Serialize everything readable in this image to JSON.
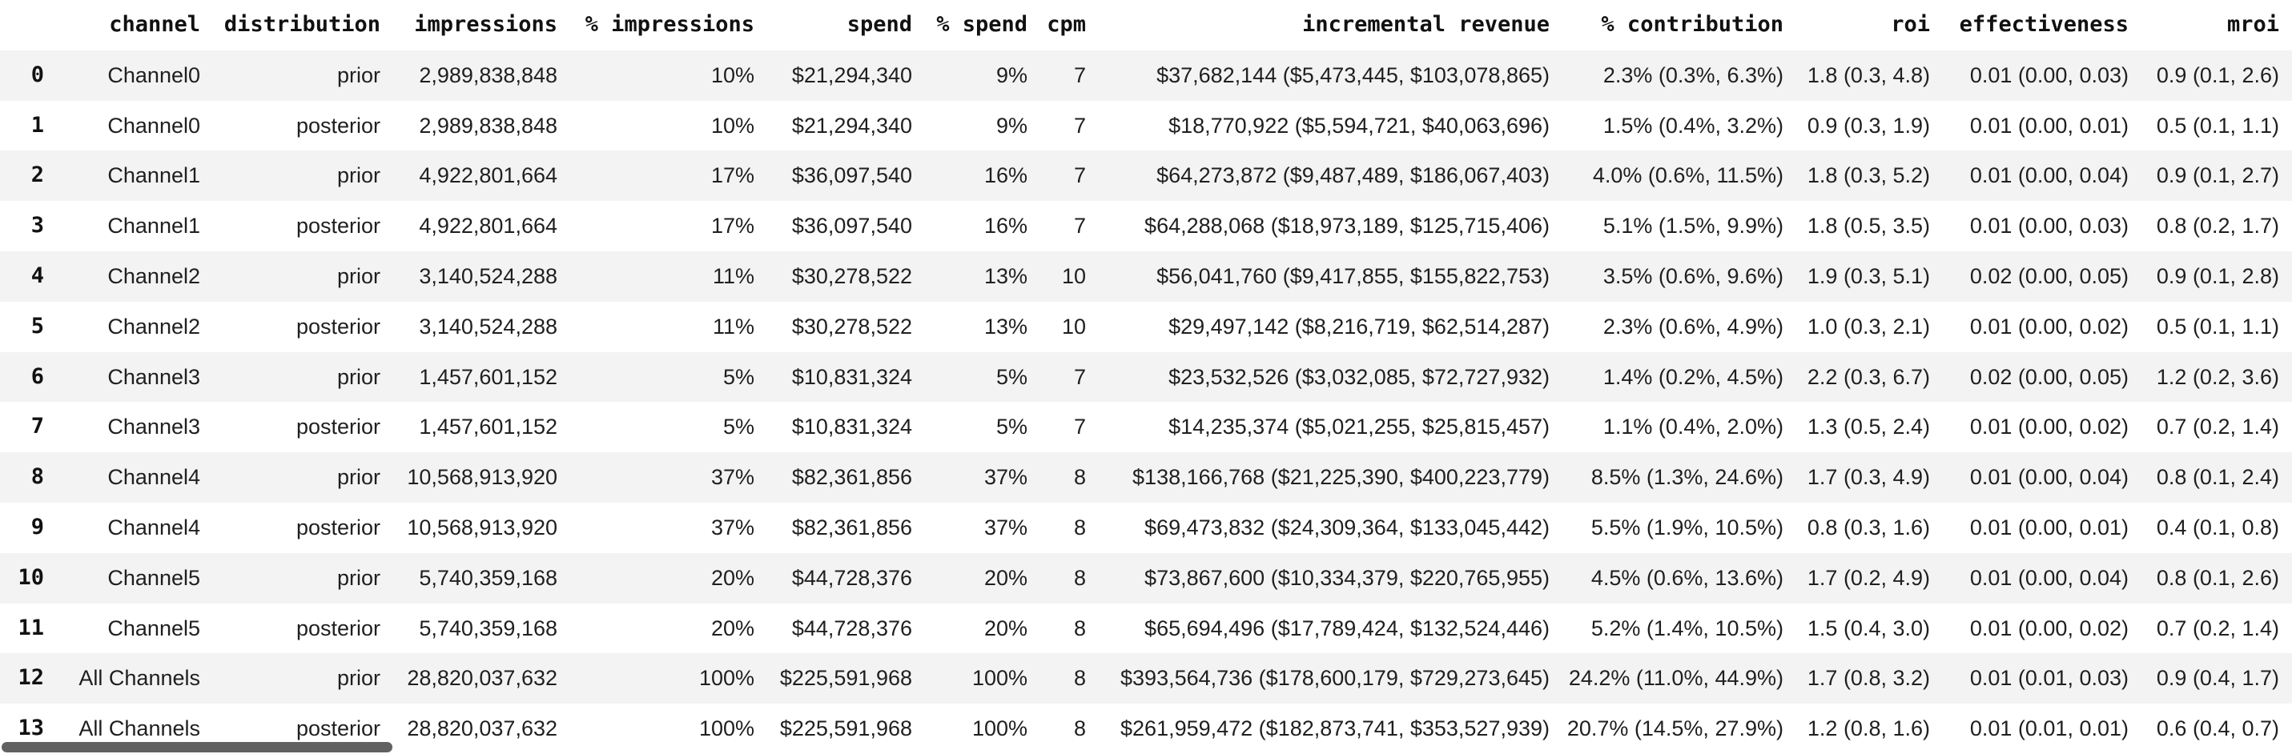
{
  "theme": {
    "background": "#ffffff",
    "stripe": "#f3f3f3",
    "text": "#1f1f1f",
    "header_text": "#111111",
    "scrollbar": "#616161"
  },
  "table": {
    "columns": [
      {
        "key": "index",
        "label": ""
      },
      {
        "key": "channel",
        "label": "channel"
      },
      {
        "key": "distribution",
        "label": "distribution"
      },
      {
        "key": "impressions",
        "label": "impressions"
      },
      {
        "key": "pct_impressions",
        "label": "% impressions"
      },
      {
        "key": "spend",
        "label": "spend"
      },
      {
        "key": "pct_spend",
        "label": "% spend"
      },
      {
        "key": "cpm",
        "label": "cpm"
      },
      {
        "key": "incremental_revenue",
        "label": "incremental revenue"
      },
      {
        "key": "pct_contribution",
        "label": "% contribution"
      },
      {
        "key": "roi",
        "label": "roi"
      },
      {
        "key": "effectiveness",
        "label": "effectiveness"
      },
      {
        "key": "mroi",
        "label": "mroi"
      }
    ],
    "rows": [
      [
        "0",
        "Channel0",
        "prior",
        "2,989,838,848",
        "10%",
        "$21,294,340",
        "9%",
        "7",
        "$37,682,144 ($5,473,445, $103,078,865)",
        "2.3% (0.3%, 6.3%)",
        "1.8 (0.3, 4.8)",
        "0.01 (0.00, 0.03)",
        "0.9 (0.1, 2.6)"
      ],
      [
        "1",
        "Channel0",
        "posterior",
        "2,989,838,848",
        "10%",
        "$21,294,340",
        "9%",
        "7",
        "$18,770,922 ($5,594,721, $40,063,696)",
        "1.5% (0.4%, 3.2%)",
        "0.9 (0.3, 1.9)",
        "0.01 (0.00, 0.01)",
        "0.5 (0.1, 1.1)"
      ],
      [
        "2",
        "Channel1",
        "prior",
        "4,922,801,664",
        "17%",
        "$36,097,540",
        "16%",
        "7",
        "$64,273,872 ($9,487,489, $186,067,403)",
        "4.0% (0.6%, 11.5%)",
        "1.8 (0.3, 5.2)",
        "0.01 (0.00, 0.04)",
        "0.9 (0.1, 2.7)"
      ],
      [
        "3",
        "Channel1",
        "posterior",
        "4,922,801,664",
        "17%",
        "$36,097,540",
        "16%",
        "7",
        "$64,288,068 ($18,973,189, $125,715,406)",
        "5.1% (1.5%, 9.9%)",
        "1.8 (0.5, 3.5)",
        "0.01 (0.00, 0.03)",
        "0.8 (0.2, 1.7)"
      ],
      [
        "4",
        "Channel2",
        "prior",
        "3,140,524,288",
        "11%",
        "$30,278,522",
        "13%",
        "10",
        "$56,041,760 ($9,417,855, $155,822,753)",
        "3.5% (0.6%, 9.6%)",
        "1.9 (0.3, 5.1)",
        "0.02 (0.00, 0.05)",
        "0.9 (0.1, 2.8)"
      ],
      [
        "5",
        "Channel2",
        "posterior",
        "3,140,524,288",
        "11%",
        "$30,278,522",
        "13%",
        "10",
        "$29,497,142 ($8,216,719, $62,514,287)",
        "2.3% (0.6%, 4.9%)",
        "1.0 (0.3, 2.1)",
        "0.01 (0.00, 0.02)",
        "0.5 (0.1, 1.1)"
      ],
      [
        "6",
        "Channel3",
        "prior",
        "1,457,601,152",
        "5%",
        "$10,831,324",
        "5%",
        "7",
        "$23,532,526 ($3,032,085, $72,727,932)",
        "1.4% (0.2%, 4.5%)",
        "2.2 (0.3, 6.7)",
        "0.02 (0.00, 0.05)",
        "1.2 (0.2, 3.6)"
      ],
      [
        "7",
        "Channel3",
        "posterior",
        "1,457,601,152",
        "5%",
        "$10,831,324",
        "5%",
        "7",
        "$14,235,374 ($5,021,255, $25,815,457)",
        "1.1% (0.4%, 2.0%)",
        "1.3 (0.5, 2.4)",
        "0.01 (0.00, 0.02)",
        "0.7 (0.2, 1.4)"
      ],
      [
        "8",
        "Channel4",
        "prior",
        "10,568,913,920",
        "37%",
        "$82,361,856",
        "37%",
        "8",
        "$138,166,768 ($21,225,390, $400,223,779)",
        "8.5% (1.3%, 24.6%)",
        "1.7 (0.3, 4.9)",
        "0.01 (0.00, 0.04)",
        "0.8 (0.1, 2.4)"
      ],
      [
        "9",
        "Channel4",
        "posterior",
        "10,568,913,920",
        "37%",
        "$82,361,856",
        "37%",
        "8",
        "$69,473,832 ($24,309,364, $133,045,442)",
        "5.5% (1.9%, 10.5%)",
        "0.8 (0.3, 1.6)",
        "0.01 (0.00, 0.01)",
        "0.4 (0.1, 0.8)"
      ],
      [
        "10",
        "Channel5",
        "prior",
        "5,740,359,168",
        "20%",
        "$44,728,376",
        "20%",
        "8",
        "$73,867,600 ($10,334,379, $220,765,955)",
        "4.5% (0.6%, 13.6%)",
        "1.7 (0.2, 4.9)",
        "0.01 (0.00, 0.04)",
        "0.8 (0.1, 2.6)"
      ],
      [
        "11",
        "Channel5",
        "posterior",
        "5,740,359,168",
        "20%",
        "$44,728,376",
        "20%",
        "8",
        "$65,694,496 ($17,789,424, $132,524,446)",
        "5.2% (1.4%, 10.5%)",
        "1.5 (0.4, 3.0)",
        "0.01 (0.00, 0.02)",
        "0.7 (0.2, 1.4)"
      ],
      [
        "12",
        "All Channels",
        "prior",
        "28,820,037,632",
        "100%",
        "$225,591,968",
        "100%",
        "8",
        "$393,564,736 ($178,600,179, $729,273,645)",
        "24.2% (11.0%, 44.9%)",
        "1.7 (0.8, 3.2)",
        "0.01 (0.01, 0.03)",
        "0.9 (0.4, 1.7)"
      ],
      [
        "13",
        "All Channels",
        "posterior",
        "28,820,037,632",
        "100%",
        "$225,591,968",
        "100%",
        "8",
        "$261,959,472 ($182,873,741, $353,527,939)",
        "20.7% (14.5%, 27.9%)",
        "1.2 (0.8, 1.6)",
        "0.01 (0.01, 0.01)",
        "0.6 (0.4, 0.7)"
      ]
    ]
  }
}
